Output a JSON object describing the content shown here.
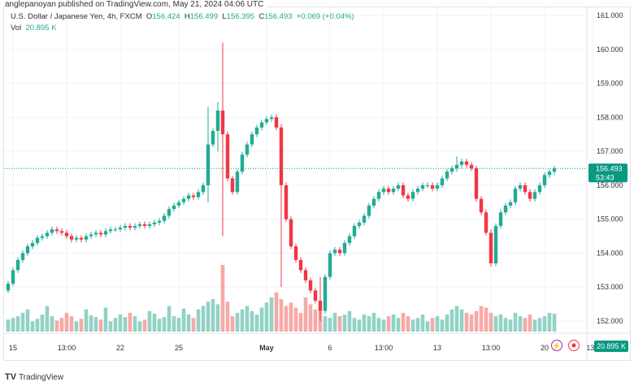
{
  "published": "anglepanoyan published on TradingView.com, May 21, 2024 04:06 UTC",
  "legend": {
    "symbol": "U.S. Dollar / Japanese Yen, 4h, FXCM",
    "o_label": "O",
    "o": "156.424",
    "h_label": "H",
    "h": "156.499",
    "l_label": "L",
    "l": "156.395",
    "c_label": "C",
    "c": "156.493",
    "change": "+0.069 (+0.04%)",
    "vol_label": "Vol",
    "vol": "20.895 K"
  },
  "footer": {
    "brand": "TradingView"
  },
  "colors": {
    "up": "#22ab94",
    "down": "#f23645",
    "vol_up": "#92d2c6",
    "vol_down": "#f7a9a7",
    "accent": "#089981"
  },
  "chart_data": {
    "type": "candlestick",
    "ylim": [
      151.6,
      161.3
    ],
    "y_ticks": [
      "161.000",
      "160.000",
      "159.000",
      "158.000",
      "157.000",
      "156.000",
      "155.000",
      "154.000",
      "153.000",
      "152.000"
    ],
    "x_ticks": [
      {
        "label": "15",
        "i": 1
      },
      {
        "label": "13:00",
        "i": 12
      },
      {
        "label": "22",
        "i": 23
      },
      {
        "label": "25",
        "i": 35
      },
      {
        "label": "May",
        "i": 53,
        "bold": true
      },
      {
        "label": "6",
        "i": 66
      },
      {
        "label": "13:00",
        "i": 77
      },
      {
        "label": "13",
        "i": 88
      },
      {
        "label": "13:00",
        "i": 99
      },
      {
        "label": "20",
        "i": 110
      },
      {
        "label": "13:0",
        "i": 120
      }
    ],
    "last_price": "156.493",
    "countdown": "53:43",
    "last_volume": "20.895 K",
    "closes": [
      153.1,
      153.5,
      153.8,
      154.0,
      154.2,
      154.3,
      154.45,
      154.5,
      154.6,
      154.7,
      154.65,
      154.6,
      154.5,
      154.4,
      154.45,
      154.4,
      154.5,
      154.55,
      154.6,
      154.55,
      154.65,
      154.7,
      154.7,
      154.75,
      154.8,
      154.75,
      154.8,
      154.85,
      154.8,
      154.85,
      154.9,
      154.95,
      155.1,
      155.3,
      155.4,
      155.5,
      155.6,
      155.7,
      155.65,
      155.8,
      156.0,
      157.2,
      157.6,
      158.2,
      157.5,
      156.2,
      155.8,
      156.4,
      156.9,
      157.2,
      157.5,
      157.7,
      157.85,
      157.95,
      158.0,
      157.7,
      156.0,
      155.0,
      154.2,
      153.8,
      153.5,
      153.2,
      152.9,
      152.6,
      152.3,
      153.3,
      154.0,
      154.1,
      154.0,
      154.3,
      154.5,
      154.8,
      154.9,
      155.1,
      155.4,
      155.6,
      155.8,
      155.9,
      155.8,
      155.9,
      156.0,
      155.7,
      155.6,
      155.8,
      155.9,
      156.0,
      156.0,
      155.9,
      156.0,
      156.2,
      156.4,
      156.5,
      156.6,
      156.7,
      156.6,
      156.5,
      155.6,
      155.2,
      154.6,
      153.7,
      154.8,
      155.2,
      155.4,
      155.5,
      155.9,
      156.0,
      155.8,
      155.6,
      155.8,
      156.0,
      156.3,
      156.4,
      156.493
    ],
    "first_open": 152.9,
    "extremes": [
      {
        "i": 41,
        "high": 158.3,
        "low": 155.5
      },
      {
        "i": 43,
        "high": 158.45,
        "low": 157.0
      },
      {
        "i": 44,
        "high": 160.2,
        "low": 154.5
      },
      {
        "i": 56,
        "high": 157.8,
        "low": 153.0
      },
      {
        "i": 64,
        "high": 153.3,
        "low": 152.0
      },
      {
        "i": 99,
        "high": 154.7,
        "low": 153.6
      },
      {
        "i": 92,
        "high": 156.85,
        "low": 156.4
      }
    ],
    "volumes": [
      14,
      16,
      18,
      22,
      26,
      12,
      15,
      20,
      30,
      18,
      13,
      16,
      22,
      18,
      12,
      15,
      26,
      19,
      17,
      14,
      28,
      12,
      16,
      20,
      17,
      22,
      18,
      12,
      14,
      24,
      21,
      15,
      17,
      30,
      18,
      16,
      27,
      20,
      16,
      26,
      30,
      35,
      38,
      32,
      78,
      35,
      18,
      22,
      26,
      30,
      24,
      20,
      28,
      34,
      40,
      46,
      38,
      30,
      34,
      28,
      22,
      40,
      32,
      26,
      24,
      18,
      16,
      22,
      18,
      20,
      24,
      16,
      14,
      20,
      18,
      22,
      16,
      14,
      18,
      20,
      16,
      22,
      18,
      14,
      16,
      20,
      12,
      16,
      18,
      14,
      20,
      26,
      30,
      26,
      22,
      20,
      24,
      30,
      28,
      22,
      18,
      20,
      16,
      14,
      22,
      18,
      16,
      20,
      14,
      16,
      18,
      22,
      21
    ]
  }
}
